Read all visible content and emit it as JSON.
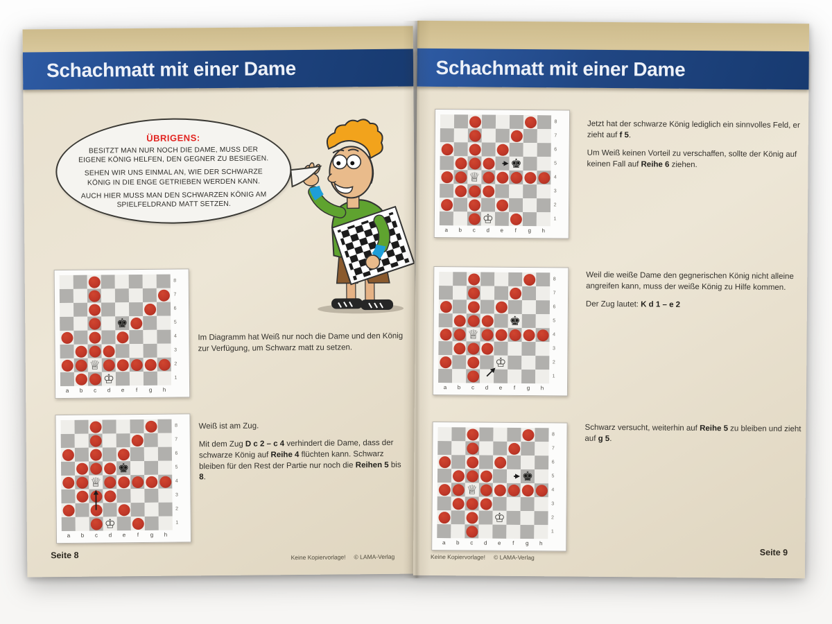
{
  "colors": {
    "banner_blue": "#1f4582",
    "banner_blue_light": "#2e5ba4",
    "page_cream": "#e9e1cf",
    "tan_strip": "#d3c193",
    "dot_red": "#c03829",
    "board_dark_square": "#b1b0ad",
    "board_light_square": "#efeeea",
    "bubble_heading_red": "#e2231f"
  },
  "left_page": {
    "title": "Schachmatt mit einer Dame",
    "bubble": {
      "heading": "ÜBRIGENS:",
      "paragraphs": [
        [
          {
            "t": "BESITZT MAN NUR NOCH DIE DAME, MUSS DER EIGENE KÖNIG HELFEN, DEN GEGNER ZU BESIEGEN."
          }
        ],
        [
          {
            "t": "SEHEN WIR UNS EINMAL AN, WIE DER SCHWARZE KÖNIG IN DIE ENGE GETRIEBEN WERDEN KANN."
          }
        ],
        [
          {
            "t": "AUCH HIER MUSS MAN DEN SCHWARZEN KÖNIG AM SPIELFELDRAND MATT SETZEN."
          }
        ]
      ]
    },
    "sections": [
      {
        "paragraphs": [
          [
            {
              "t": "Im Diagramm hat Weiß nur noch die Dame und den König zur Verfügung, um Schwarz matt zu setzen."
            }
          ]
        ]
      },
      {
        "paragraphs": [
          [
            {
              "t": "Weiß ist am Zug."
            }
          ],
          [
            {
              "t": "Mit dem Zug "
            },
            {
              "t": "D c 2 – c 4",
              "b": true
            },
            {
              "t": " verhindert die Dame, dass der schwarze König auf "
            },
            {
              "t": "Reihe 4",
              "b": true
            },
            {
              "t": " flüchten kann. Schwarz bleiben für den Rest der Partie nur noch die "
            },
            {
              "t": "Reihen 5",
              "b": true
            },
            {
              "t": " bis "
            },
            {
              "t": "8",
              "b": true
            },
            {
              "t": "."
            }
          ]
        ]
      }
    ],
    "footer_page": "Seite 8",
    "notice_a": "Keine Kopiervorlage!",
    "notice_b": "© LAMA-Verlag"
  },
  "right_page": {
    "title": "Schachmatt mit einer Dame",
    "sections": [
      {
        "paragraphs": [
          [
            {
              "t": "Jetzt hat der schwarze König lediglich ein sinnvolles Feld, er zieht auf "
            },
            {
              "t": "f 5",
              "b": true
            },
            {
              "t": "."
            }
          ],
          [
            {
              "t": "Um Weiß keinen Vorteil zu verschaffen, sollte der König auf keinen Fall auf "
            },
            {
              "t": "Reihe 6",
              "b": true
            },
            {
              "t": " ziehen."
            }
          ]
        ]
      },
      {
        "paragraphs": [
          [
            {
              "t": "Weil die weiße Dame den gegnerischen König nicht alleine angreifen kann, muss der weiße König zu Hilfe kommen."
            }
          ],
          [
            {
              "t": "Der Zug lautet: "
            },
            {
              "t": "K d 1 – e 2",
              "b": true
            }
          ]
        ]
      },
      {
        "paragraphs": [
          [
            {
              "t": "Schwarz versucht, weiterhin auf "
            },
            {
              "t": "Reihe 5",
              "b": true
            },
            {
              "t": " zu bleiben und zieht auf "
            },
            {
              "t": "g 5",
              "b": true
            },
            {
              "t": "."
            }
          ]
        ]
      }
    ],
    "footer_page": "Seite 9",
    "notice_a": "Keine Kopiervorlage!",
    "notice_b": "© LAMA-Verlag"
  },
  "boards": {
    "files": [
      "a",
      "b",
      "c",
      "d",
      "e",
      "f",
      "g",
      "h"
    ],
    "ranks_top_to_bottom": [
      "8",
      "7",
      "6",
      "5",
      "4",
      "3",
      "2",
      "1"
    ],
    "piece_glyphs": {
      "white-queen": "♕",
      "white-king": "♔",
      "black-king": "♚"
    },
    "list": [
      {
        "id": "L1",
        "dots": [
          "c8",
          "c7",
          "h7",
          "c6",
          "g6",
          "c5",
          "f5",
          "a4",
          "c4",
          "e4",
          "b3",
          "c3",
          "d3",
          "a2",
          "b2",
          "d2",
          "e2",
          "f2",
          "g2",
          "h2",
          "b1",
          "c1"
        ],
        "pieces": [
          {
            "sq": "e5",
            "type": "black-king"
          },
          {
            "sq": "c2",
            "type": "white-queen"
          },
          {
            "sq": "d1",
            "type": "white-king"
          }
        ],
        "arrows": []
      },
      {
        "id": "L2",
        "dots": [
          "c8",
          "g8",
          "c7",
          "f7",
          "a6",
          "c6",
          "e6",
          "b5",
          "c5",
          "d5",
          "a4",
          "b4",
          "d4",
          "e4",
          "f4",
          "g4",
          "h4",
          "b3",
          "c3",
          "d3",
          "a2",
          "c2",
          "e2",
          "c1",
          "f1"
        ],
        "pieces": [
          {
            "sq": "e5",
            "type": "black-king"
          },
          {
            "sq": "c4",
            "type": "white-queen"
          },
          {
            "sq": "d1",
            "type": "white-king"
          }
        ],
        "arrows": [
          {
            "from": "c2",
            "to": "c4"
          }
        ]
      },
      {
        "id": "R1",
        "dots": [
          "c8",
          "g8",
          "c7",
          "f7",
          "a6",
          "c6",
          "e6",
          "b5",
          "c5",
          "d5",
          "a4",
          "b4",
          "d4",
          "e4",
          "f4",
          "g4",
          "h4",
          "b3",
          "c3",
          "d3",
          "a2",
          "c2",
          "e2",
          "c1",
          "f1"
        ],
        "pieces": [
          {
            "sq": "f5",
            "type": "black-king"
          },
          {
            "sq": "c4",
            "type": "white-queen"
          },
          {
            "sq": "d1",
            "type": "white-king"
          }
        ],
        "arrows": [
          {
            "from": "e5",
            "to": "f5"
          }
        ]
      },
      {
        "id": "R2",
        "dots": [
          "c8",
          "g8",
          "c7",
          "f7",
          "a6",
          "c6",
          "e6",
          "b5",
          "c5",
          "d5",
          "a4",
          "b4",
          "d4",
          "e4",
          "f4",
          "g4",
          "h4",
          "b3",
          "c3",
          "d3",
          "a2",
          "c2",
          "c1"
        ],
        "pieces": [
          {
            "sq": "f5",
            "type": "black-king"
          },
          {
            "sq": "c4",
            "type": "white-queen"
          },
          {
            "sq": "e2",
            "type": "white-king"
          }
        ],
        "arrows": [
          {
            "from": "d1",
            "to": "e2"
          }
        ]
      },
      {
        "id": "R3",
        "dots": [
          "c8",
          "g8",
          "c7",
          "f7",
          "a6",
          "c6",
          "e6",
          "b5",
          "c5",
          "d5",
          "a4",
          "b4",
          "d4",
          "e4",
          "f4",
          "g4",
          "h4",
          "b3",
          "c3",
          "d3",
          "a2",
          "c2",
          "c1"
        ],
        "pieces": [
          {
            "sq": "g5",
            "type": "black-king"
          },
          {
            "sq": "c4",
            "type": "white-queen"
          },
          {
            "sq": "e2",
            "type": "white-king"
          }
        ],
        "arrows": [
          {
            "from": "f5",
            "to": "g5"
          }
        ]
      }
    ]
  }
}
